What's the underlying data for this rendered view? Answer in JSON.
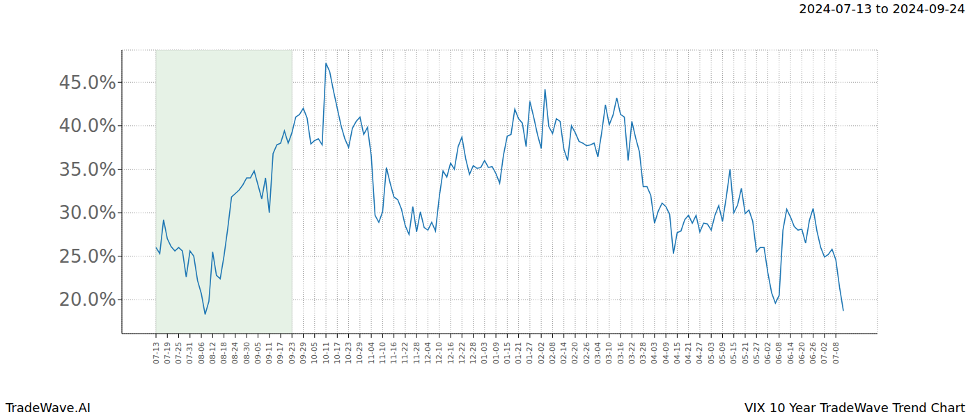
{
  "chart_data": {
    "type": "line",
    "title": "2024-07-13 to 2024-09-24",
    "footer_left": "TradeWave.AI",
    "footer_right": "VIX 10 Year TradeWave Trend Chart",
    "color": "#1f77b4",
    "grid": true,
    "shaded_range": {
      "start": "07-13",
      "end": "09-23",
      "color": "#e6f2e6"
    },
    "categories": [
      "07-13",
      null,
      null,
      "07-19",
      null,
      null,
      "07-25",
      null,
      null,
      "07-31",
      null,
      null,
      "08-06",
      null,
      null,
      "08-12",
      null,
      null,
      "08-18",
      null,
      null,
      "08-24",
      null,
      null,
      "08-30",
      null,
      null,
      "09-05",
      null,
      null,
      "09-11",
      null,
      null,
      "09-17",
      null,
      null,
      "09-23",
      null,
      null,
      "09-29",
      null,
      null,
      "10-05",
      null,
      null,
      "10-11",
      null,
      null,
      "10-17",
      null,
      null,
      "10-23",
      null,
      null,
      "10-29",
      null,
      null,
      "11-04",
      null,
      null,
      "11-10",
      null,
      null,
      "11-16",
      null,
      null,
      "11-22",
      null,
      null,
      "11-28",
      null,
      null,
      "12-04",
      null,
      null,
      "12-10",
      null,
      null,
      "12-16",
      null,
      null,
      "12-22",
      null,
      null,
      "12-28",
      null,
      null,
      "01-03",
      null,
      null,
      "01-09",
      null,
      null,
      "01-15",
      null,
      null,
      "01-21",
      null,
      null,
      "01-27",
      null,
      null,
      "02-02",
      null,
      null,
      "02-08",
      null,
      null,
      "02-14",
      null,
      null,
      "02-20",
      null,
      null,
      "02-26",
      null,
      null,
      "03-04",
      null,
      null,
      "03-10",
      null,
      null,
      "03-16",
      null,
      null,
      "03-22",
      null,
      null,
      "03-28",
      null,
      null,
      "04-03",
      null,
      null,
      "04-09",
      null,
      null,
      "04-15",
      null,
      null,
      "04-21",
      null,
      null,
      "04-27",
      null,
      null,
      "05-03",
      null,
      null,
      "05-09",
      null,
      null,
      "05-15",
      null,
      null,
      "05-21",
      null,
      null,
      "05-27",
      null,
      null,
      "06-02",
      null,
      null,
      "06-08",
      null,
      null,
      "06-14",
      null,
      null,
      "06-20",
      null,
      null,
      "06-26",
      null,
      null,
      "07-02",
      null,
      null,
      "07-08",
      null,
      null
    ],
    "values": [
      26.0,
      25.3,
      29.2,
      27.0,
      26.1,
      25.6,
      26.0,
      25.6,
      22.6,
      25.6,
      25.0,
      22.2,
      20.7,
      18.3,
      19.8,
      25.5,
      22.8,
      22.4,
      25.0,
      28.2,
      31.8,
      32.2,
      32.6,
      33.2,
      34.0,
      34.0,
      34.8,
      33.2,
      31.6,
      34.0,
      30.0,
      36.8,
      37.8,
      38.0,
      39.4,
      38.0,
      39.2,
      41.0,
      41.3,
      42.0,
      40.9,
      37.9,
      38.3,
      38.5,
      37.8,
      47.2,
      46.2,
      44.0,
      42.0,
      40.0,
      38.5,
      37.5,
      39.7,
      40.5,
      41.0,
      39.0,
      39.8,
      36.5,
      29.7,
      28.9,
      30.1,
      35.2,
      33.4,
      31.8,
      31.5,
      30.4,
      28.5,
      27.5,
      30.7,
      27.8,
      30.1,
      28.3,
      28.0,
      28.9,
      27.9,
      31.8,
      34.8,
      34.1,
      35.7,
      35.0,
      37.6,
      38.7,
      36.2,
      34.4,
      35.4,
      35.1,
      35.2,
      36.0,
      35.2,
      35.3,
      34.5,
      33.4,
      36.6,
      38.8,
      39.0,
      41.9,
      40.8,
      40.3,
      37.6,
      42.8,
      41.0,
      39.0,
      37.4,
      44.2,
      39.9,
      39.1,
      40.8,
      40.5,
      37.3,
      36.0,
      40.0,
      39.2,
      38.2,
      38.0,
      37.7,
      37.8,
      38.0,
      36.4,
      39.2,
      42.4,
      40.1,
      41.2,
      43.2,
      41.3,
      41.0,
      36.0,
      40.5,
      38.6,
      37.0,
      33.0,
      33.0,
      32.0,
      28.8,
      30.2,
      31.1,
      30.7,
      29.8,
      25.3,
      27.7,
      27.9,
      29.2,
      29.7,
      28.8,
      29.7,
      27.8,
      28.8,
      28.7,
      28.0,
      29.7,
      30.8,
      29.0,
      31.8,
      35.0,
      30.0,
      30.9,
      32.8,
      29.9,
      30.3,
      29.0,
      25.5,
      26.0,
      26.0,
      23.1,
      20.8,
      19.6,
      20.5,
      28.0,
      30.4,
      29.5,
      28.4,
      28.0,
      28.1,
      26.5,
      29.1,
      30.5,
      27.9,
      26.0,
      24.9,
      25.2,
      25.8,
      24.6,
      21.4,
      18.7
    ],
    "ylim": [
      16.1,
      48.7
    ],
    "yticks": [
      {
        "value": 20,
        "label": "20.0%"
      },
      {
        "value": 25,
        "label": "25.0%"
      },
      {
        "value": 30,
        "label": "30.0%"
      },
      {
        "value": 35,
        "label": "35.0%"
      },
      {
        "value": 40,
        "label": "40.0%"
      },
      {
        "value": 45,
        "label": "45.0%"
      }
    ]
  }
}
